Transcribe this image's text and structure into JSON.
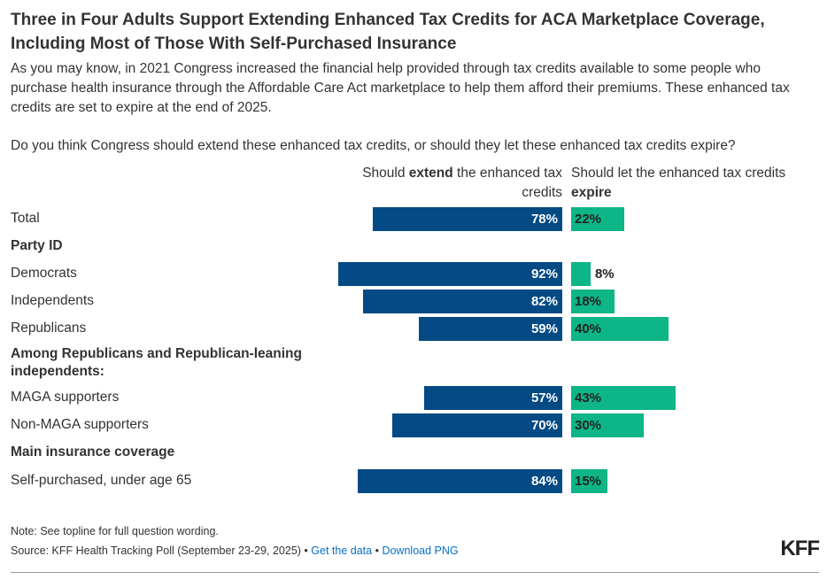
{
  "title": "Three in Four Adults Support Extending Enhanced Tax Credits for ACA Marketplace Coverage, Including Most of Those With Self-Purchased Insurance",
  "intro": "As you may know, in 2021 Congress increased the financial help provided through tax credits available to some people who purchase health insurance through the Affordable Care Act marketplace to help them afford their premiums. These enhanced tax credits are set to expire at the end of 2025.",
  "question": "Do you think Congress should extend these enhanced tax credits, or should they let these enhanced tax credits expire?",
  "headers": {
    "left_pre": "Should ",
    "left_bold": "extend",
    "left_post": " the enhanced tax credits",
    "right_pre": "Should let the enhanced tax credits ",
    "right_bold": "expire"
  },
  "footer": {
    "note": "Note: See topline for full question wording.",
    "source": "Source: KFF Health Tracking Poll (September 23-29, 2025) •",
    "get_data": "Get the data",
    "sep": "•",
    "download": "Download PNG",
    "logo": "KFF"
  },
  "colors": {
    "extend": "#044a84",
    "expire": "#0db587"
  },
  "chart_data": {
    "type": "bar",
    "orientation": "horizontal-diverging",
    "series": [
      {
        "name": "Should extend the enhanced tax credits"
      },
      {
        "name": "Should let the enhanced tax credits expire"
      }
    ],
    "rows": [
      {
        "label": "Total",
        "extend": 78,
        "expire": 22
      },
      {
        "group": "Party ID"
      },
      {
        "label": "Democrats",
        "extend": 92,
        "expire": 8
      },
      {
        "label": "Independents",
        "extend": 82,
        "expire": 18
      },
      {
        "label": "Republicans",
        "extend": 59,
        "expire": 40
      },
      {
        "group": "Among Republicans and Republican-leaning independents:"
      },
      {
        "label": "MAGA supporters",
        "extend": 57,
        "expire": 43
      },
      {
        "label": "Non-MAGA supporters",
        "extend": 70,
        "expire": 30
      },
      {
        "group": "Main insurance coverage"
      },
      {
        "label": "Self-purchased, under age 65",
        "extend": 84,
        "expire": 15
      }
    ]
  }
}
